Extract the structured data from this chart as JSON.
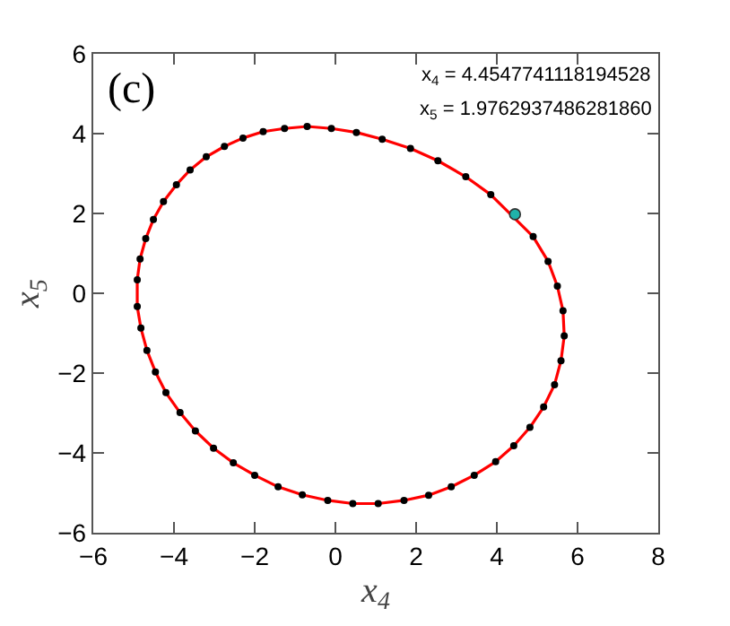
{
  "chart_data": {
    "type": "scatter",
    "xlabel": "x$_{4}$",
    "ylabel": "x$_{5}$",
    "xlim": [
      -6,
      8
    ],
    "xticks": [
      -6,
      -4,
      -2,
      0,
      2,
      4,
      6,
      8
    ],
    "ylim": [
      -6,
      6
    ],
    "yticks": [
      -6,
      -4,
      -2,
      0,
      2,
      4,
      6
    ],
    "grid": false,
    "marker": "circle",
    "annotations": [
      "(c)",
      "x$_{4}$ = 4.4547741118194528",
      "x$_{5}$ = 1.9762937486281860"
    ],
    "series": [
      {
        "color": "#000000",
        "x": [
          -4.91,
          -4.84,
          -4.7,
          -4.51,
          -4.26,
          -3.94,
          -3.6,
          -3.2,
          -2.75,
          -2.29,
          -1.79,
          -1.26,
          -0.7,
          -0.1,
          0.52,
          1.16,
          1.86,
          2.54,
          3.23,
          3.85,
          4.9,
          5.27,
          5.5,
          5.64,
          5.67,
          5.59,
          5.43,
          5.16,
          4.82,
          4.42,
          3.97,
          3.44,
          2.87,
          2.31,
          1.7,
          1.06,
          0.43,
          -0.19,
          -0.82,
          -1.42,
          -2.0,
          -2.53,
          -3.02,
          -3.47,
          -3.85,
          -4.2,
          -4.46,
          -4.67,
          -4.82,
          -4.91
        ],
        "values": [
          0.34,
          0.86,
          1.37,
          1.85,
          2.3,
          2.72,
          3.09,
          3.42,
          3.68,
          3.89,
          4.05,
          4.13,
          4.18,
          4.13,
          4.03,
          3.86,
          3.63,
          3.32,
          2.92,
          2.47,
          1.42,
          0.8,
          0.18,
          -0.44,
          -1.07,
          -1.69,
          -2.29,
          -2.85,
          -3.36,
          -3.82,
          -4.22,
          -4.56,
          -4.85,
          -5.06,
          -5.19,
          -5.27,
          -5.27,
          -5.19,
          -5.05,
          -4.85,
          -4.56,
          -4.25,
          -3.88,
          -3.45,
          -2.99,
          -2.49,
          -1.97,
          -1.43,
          -0.87,
          -0.33
        ]
      },
      {
        "color": "#20b2aa",
        "x": [
          4.45
        ],
        "values": [
          1.98
        ]
      }
    ]
  }
}
